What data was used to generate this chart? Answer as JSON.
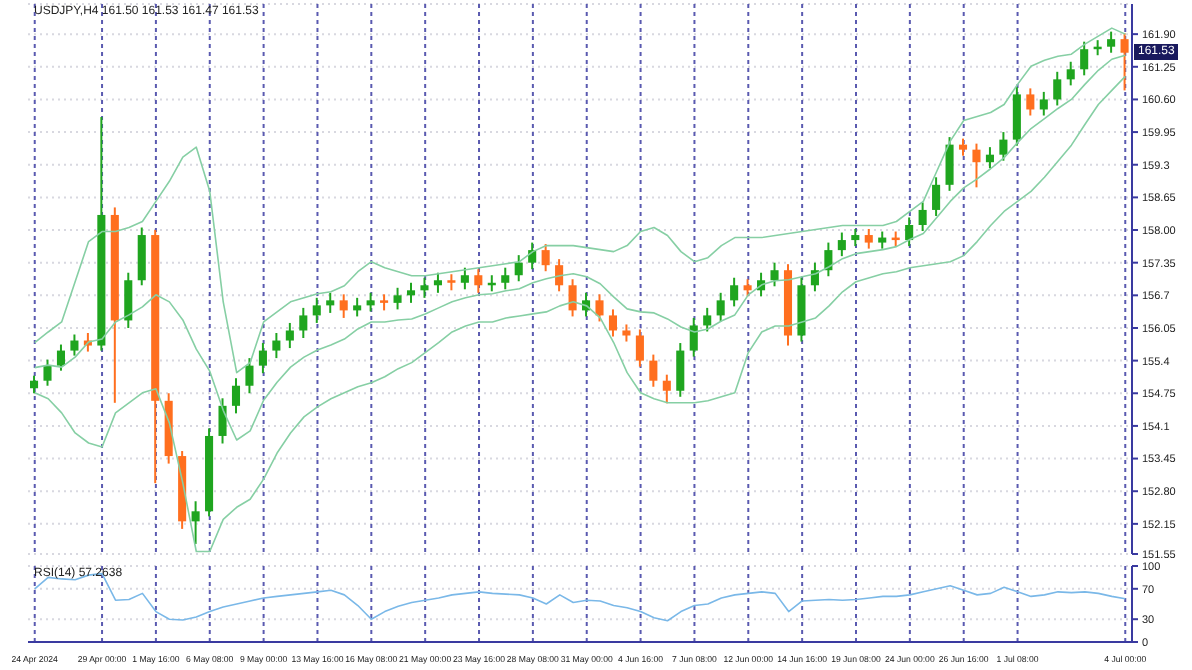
{
  "chart_data": [
    {
      "type": "candlestick",
      "title": "USDJPY,H4 161.50 161.53 161.47 161.53",
      "categories": [
        null,
        null,
        null,
        null,
        null,
        null,
        null,
        null,
        null,
        null,
        null,
        null,
        null,
        null,
        null,
        null,
        null,
        null,
        null,
        null,
        null,
        null,
        null,
        null,
        null,
        null,
        null,
        null,
        null,
        null,
        null,
        null,
        null,
        null,
        null,
        null,
        null,
        null,
        null,
        null,
        null,
        null,
        null,
        null,
        null,
        null,
        null,
        null,
        null,
        null,
        null,
        null,
        null,
        null,
        null,
        null,
        null,
        null,
        null,
        null,
        null,
        null,
        null,
        null,
        null,
        null,
        null,
        null,
        null,
        null,
        null,
        null,
        null,
        null,
        null,
        null,
        null,
        null,
        null,
        null,
        null,
        null
      ],
      "ohlc": [
        [
          154.85,
          155.1,
          154.75,
          155.0
        ],
        [
          155.0,
          155.42,
          154.9,
          155.3
        ],
        [
          155.3,
          155.72,
          155.2,
          155.6
        ],
        [
          155.6,
          155.92,
          155.5,
          155.8
        ],
        [
          155.8,
          155.95,
          155.58,
          155.7
        ],
        [
          155.7,
          160.25,
          155.6,
          158.3
        ],
        [
          158.3,
          158.45,
          154.56,
          156.2
        ],
        [
          156.2,
          157.15,
          156.05,
          157.0
        ],
        [
          157.0,
          158.05,
          156.9,
          157.9
        ],
        [
          157.9,
          158.0,
          152.96,
          154.6
        ],
        [
          154.6,
          154.75,
          153.35,
          153.5
        ],
        [
          153.5,
          153.6,
          152.05,
          152.2
        ],
        [
          152.2,
          152.6,
          151.75,
          152.4
        ],
        [
          152.4,
          154.05,
          152.3,
          153.9
        ],
        [
          153.9,
          154.65,
          153.75,
          154.5
        ],
        [
          154.5,
          155.05,
          154.35,
          154.9
        ],
        [
          154.9,
          155.45,
          154.75,
          155.3
        ],
        [
          155.3,
          155.75,
          155.15,
          155.6
        ],
        [
          155.6,
          155.95,
          155.45,
          155.8
        ],
        [
          155.8,
          156.15,
          155.65,
          156.0
        ],
        [
          156.0,
          156.45,
          155.85,
          156.3
        ],
        [
          156.3,
          156.65,
          156.15,
          156.5
        ],
        [
          156.5,
          156.75,
          156.35,
          156.6
        ],
        [
          156.6,
          156.72,
          156.25,
          156.4
        ],
        [
          156.4,
          156.65,
          156.28,
          156.5
        ],
        [
          156.5,
          156.75,
          156.38,
          156.6
        ],
        [
          156.6,
          156.72,
          156.4,
          156.55
        ],
        [
          156.55,
          156.85,
          156.42,
          156.7
        ],
        [
          156.7,
          156.95,
          156.55,
          156.8
        ],
        [
          156.8,
          157.05,
          156.65,
          156.9
        ],
        [
          156.9,
          157.15,
          156.75,
          157.0
        ],
        [
          157.0,
          157.12,
          156.8,
          156.95
        ],
        [
          156.95,
          157.25,
          156.82,
          157.1
        ],
        [
          157.1,
          157.22,
          156.75,
          156.9
        ],
        [
          156.9,
          157.1,
          156.78,
          156.95
        ],
        [
          156.95,
          157.25,
          156.82,
          157.1
        ],
        [
          157.1,
          157.5,
          156.98,
          157.35
        ],
        [
          157.35,
          157.75,
          157.22,
          157.6
        ],
        [
          157.6,
          157.72,
          157.18,
          157.3
        ],
        [
          157.3,
          157.42,
          156.78,
          156.9
        ],
        [
          156.9,
          157.02,
          156.28,
          156.4
        ],
        [
          156.4,
          156.75,
          156.28,
          156.6
        ],
        [
          156.6,
          156.72,
          156.18,
          156.3
        ],
        [
          156.3,
          156.42,
          155.88,
          156.0
        ],
        [
          156.0,
          156.12,
          155.78,
          155.9
        ],
        [
          155.9,
          156.02,
          155.28,
          155.4
        ],
        [
          155.4,
          155.52,
          154.88,
          155.0
        ],
        [
          155.0,
          155.12,
          154.55,
          154.8
        ],
        [
          154.8,
          155.75,
          154.68,
          155.6
        ],
        [
          155.6,
          156.25,
          155.48,
          156.1
        ],
        [
          156.1,
          156.45,
          155.98,
          156.3
        ],
        [
          156.3,
          156.75,
          156.18,
          156.6
        ],
        [
          156.6,
          157.05,
          156.48,
          156.9
        ],
        [
          156.9,
          157.02,
          156.68,
          156.8
        ],
        [
          156.8,
          157.15,
          156.68,
          157.0
        ],
        [
          157.0,
          157.35,
          156.88,
          157.2
        ],
        [
          157.2,
          157.32,
          155.7,
          155.9
        ],
        [
          155.9,
          157.05,
          155.78,
          156.9
        ],
        [
          156.9,
          157.35,
          156.78,
          157.2
        ],
        [
          157.2,
          157.75,
          157.08,
          157.6
        ],
        [
          157.6,
          157.95,
          157.48,
          157.8
        ],
        [
          157.8,
          158.02,
          157.68,
          157.9
        ],
        [
          157.9,
          158.02,
          157.63,
          157.75
        ],
        [
          157.75,
          157.97,
          157.63,
          157.85
        ],
        [
          157.85,
          157.97,
          157.68,
          157.8
        ],
        [
          157.8,
          158.25,
          157.68,
          158.1
        ],
        [
          158.1,
          158.55,
          157.98,
          158.4
        ],
        [
          158.4,
          159.05,
          158.28,
          158.9
        ],
        [
          158.9,
          159.85,
          158.78,
          159.7
        ],
        [
          159.7,
          159.82,
          159.48,
          159.6
        ],
        [
          159.6,
          159.72,
          158.85,
          159.35
        ],
        [
          159.35,
          159.65,
          159.23,
          159.5
        ],
        [
          159.5,
          159.95,
          159.38,
          159.8
        ],
        [
          159.8,
          160.85,
          159.68,
          160.7
        ],
        [
          160.7,
          160.82,
          160.28,
          160.4
        ],
        [
          160.4,
          160.75,
          160.28,
          160.6
        ],
        [
          160.6,
          161.15,
          160.48,
          161.0
        ],
        [
          161.0,
          161.35,
          160.88,
          161.2
        ],
        [
          161.2,
          161.75,
          161.08,
          161.6
        ],
        [
          161.6,
          161.78,
          161.48,
          161.65
        ],
        [
          161.65,
          161.95,
          161.53,
          161.8
        ],
        [
          161.8,
          161.92,
          160.78,
          161.53
        ]
      ],
      "colors": [
        "#1fa51f",
        "#1fa51f",
        "#1fa51f",
        "#1fa51f",
        "#ff6f1f",
        "#1fa51f",
        "#ff6f1f",
        "#1fa51f",
        "#1fa51f",
        "#ff6f1f",
        "#ff6f1f",
        "#ff6f1f",
        "#1fa51f",
        "#1fa51f",
        "#1fa51f",
        "#1fa51f",
        "#1fa51f",
        "#1fa51f",
        "#1fa51f",
        "#1fa51f",
        "#1fa51f",
        "#1fa51f",
        "#1fa51f",
        "#ff6f1f",
        "#1fa51f",
        "#1fa51f",
        "#ff6f1f",
        "#1fa51f",
        "#1fa51f",
        "#1fa51f",
        "#1fa51f",
        "#ff6f1f",
        "#1fa51f",
        "#ff6f1f",
        "#1fa51f",
        "#1fa51f",
        "#1fa51f",
        "#1fa51f",
        "#ff6f1f",
        "#ff6f1f",
        "#ff6f1f",
        "#1fa51f",
        "#ff6f1f",
        "#ff6f1f",
        "#ff6f1f",
        "#ff6f1f",
        "#ff6f1f",
        "#ff6f1f",
        "#1fa51f",
        "#1fa51f",
        "#1fa51f",
        "#1fa51f",
        "#1fa51f",
        "#ff6f1f",
        "#1fa51f",
        "#1fa51f",
        "#ff6f1f",
        "#1fa51f",
        "#1fa51f",
        "#1fa51f",
        "#1fa51f",
        "#1fa51f",
        "#ff6f1f",
        "#1fa51f",
        "#ff6f1f",
        "#1fa51f",
        "#1fa51f",
        "#1fa51f",
        "#1fa51f",
        "#ff6f1f",
        "#ff6f1f",
        "#1fa51f",
        "#1fa51f",
        "#1fa51f",
        "#ff6f1f",
        "#1fa51f",
        "#1fa51f",
        "#1fa51f",
        "#1fa51f",
        "#1fa51f",
        "#1fa51f",
        "#ff6f1f"
      ],
      "series": [
        {
          "type": "line",
          "color": "#86cfa4",
          "values": [
            155.76,
            155.97,
            156.17,
            156.97,
            157.77,
            157.97,
            157.97,
            158.05,
            158.17,
            158.57,
            158.97,
            159.45,
            159.65,
            158.77,
            156.57,
            155.16,
            155.36,
            156.17,
            156.37,
            156.57,
            156.65,
            156.73,
            156.77,
            156.89,
            157.17,
            157.37,
            157.25,
            157.17,
            157.09,
            157.09,
            157.13,
            157.17,
            157.21,
            157.25,
            157.29,
            157.33,
            157.37,
            157.57,
            157.69,
            157.69,
            157.69,
            157.65,
            157.61,
            157.57,
            157.69,
            157.97,
            158.05,
            157.89,
            157.57,
            157.37,
            157.45,
            157.69,
            157.85,
            157.85,
            157.85,
            157.89,
            157.93,
            157.97,
            158.01,
            158.05,
            158.09,
            158.09,
            158.09,
            158.09,
            158.17,
            158.37,
            158.57,
            159.17,
            159.77,
            160.18,
            160.26,
            160.34,
            160.5,
            160.9,
            161.26,
            161.38,
            161.46,
            161.5,
            161.7,
            161.86,
            162.02,
            161.9
          ]
        },
        {
          "type": "line",
          "color": "#86cfa4",
          "values": [
            155.26,
            155.31,
            155.27,
            155.47,
            155.77,
            155.83,
            156.17,
            156.31,
            156.47,
            156.71,
            156.57,
            156.21,
            155.63,
            155.19,
            154.41,
            153.82,
            154.0,
            154.61,
            154.97,
            155.27,
            155.47,
            155.61,
            155.71,
            155.83,
            156.03,
            156.17,
            156.17,
            156.21,
            156.23,
            156.33,
            156.45,
            156.57,
            156.65,
            156.71,
            156.73,
            156.79,
            156.83,
            156.95,
            157.03,
            157.09,
            157.13,
            157.07,
            156.93,
            156.67,
            156.43,
            156.37,
            156.35,
            156.23,
            156.07,
            155.97,
            156.03,
            156.19,
            156.31,
            156.71,
            156.91,
            156.99,
            157.01,
            157.07,
            157.13,
            157.27,
            157.43,
            157.53,
            157.57,
            157.61,
            157.67,
            157.81,
            157.93,
            158.25,
            158.57,
            158.84,
            159.02,
            159.22,
            159.44,
            159.74,
            160.02,
            160.22,
            160.42,
            160.6,
            160.9,
            161.18,
            161.4,
            161.48
          ]
        },
        {
          "type": "line",
          "color": "#86cfa4",
          "values": [
            154.76,
            154.64,
            154.36,
            153.96,
            153.76,
            153.68,
            154.36,
            154.56,
            154.76,
            154.84,
            154.16,
            152.96,
            151.6,
            151.6,
            152.24,
            152.48,
            152.64,
            153.04,
            153.56,
            153.96,
            154.28,
            154.48,
            154.64,
            154.76,
            154.88,
            154.96,
            155.08,
            155.24,
            155.36,
            155.56,
            155.76,
            155.97,
            156.09,
            156.17,
            156.17,
            156.25,
            156.29,
            156.33,
            156.37,
            156.49,
            156.57,
            156.49,
            156.25,
            155.76,
            155.16,
            154.76,
            154.64,
            154.56,
            154.56,
            154.56,
            154.6,
            154.68,
            154.76,
            155.56,
            155.97,
            156.09,
            156.09,
            156.17,
            156.25,
            156.49,
            156.77,
            156.97,
            157.05,
            157.13,
            157.17,
            157.25,
            157.29,
            157.33,
            157.37,
            157.49,
            157.77,
            158.09,
            158.37,
            158.57,
            158.77,
            159.05,
            159.37,
            159.69,
            160.1,
            160.5,
            160.78,
            161.06
          ]
        }
      ],
      "ylim": [
        151.55,
        162.5
      ],
      "yticks": [
        151.55,
        152.15,
        {
          "value": 152.8,
          "label": "152.80"
        },
        153.45,
        154.1,
        154.75,
        155.4,
        156.05,
        156.7,
        157.35,
        {
          "value": 158,
          "label": "158.00"
        },
        158.65,
        159.3,
        159.95,
        {
          "value": 160.6,
          "label": "160.60"
        },
        161.25,
        {
          "value": 161.9,
          "label": "161.90"
        }
      ],
      "grid": true,
      "tick_labels": "y",
      "annotations": [
        {
          "text": "161.53",
          "y": 161.53
        }
      ]
    },
    {
      "type": "line",
      "title": "RSI(14) 57.2638",
      "categories": [
        "24 Apr 2024",
        null,
        null,
        null,
        null,
        "29 Apr 00:00",
        null,
        null,
        null,
        "1 May 16:00",
        null,
        null,
        null,
        "6 May 08:00",
        null,
        null,
        null,
        "9 May 00:00",
        null,
        null,
        null,
        "13 May 16:00",
        null,
        null,
        null,
        "16 May 08:00",
        null,
        null,
        null,
        "21 May 00:00",
        null,
        null,
        null,
        "23 May 16:00",
        null,
        null,
        null,
        "28 May 08:00",
        null,
        null,
        null,
        "31 May 00:00",
        null,
        null,
        null,
        "4 Jun 16:00",
        null,
        null,
        null,
        "7 Jun 08:00",
        null,
        null,
        null,
        "12 Jun 00:00",
        null,
        null,
        null,
        "14 Jun 16:00",
        null,
        null,
        null,
        "19 Jun 08:00",
        null,
        null,
        null,
        "24 Jun 00:00",
        null,
        null,
        null,
        "26 Jun 16:00",
        null,
        null,
        null,
        "1 Jul 08:00",
        null,
        null,
        null,
        null,
        null,
        null,
        null,
        "4 Jul 00:00"
      ],
      "series": [
        {
          "color": "#7ab8e8",
          "values": [
            70,
            85,
            83,
            82,
            88,
            90,
            55,
            56,
            64,
            40,
            30,
            29,
            33,
            40,
            46,
            50,
            54,
            58,
            60,
            62,
            64,
            66,
            68,
            62,
            48,
            30,
            40,
            47,
            52,
            55,
            58,
            62,
            64,
            66,
            64,
            63,
            62,
            58,
            50,
            62,
            52,
            55,
            54,
            48,
            45,
            40,
            32,
            28,
            40,
            48,
            50,
            58,
            62,
            64,
            66,
            64,
            40,
            54,
            55,
            56,
            55,
            56,
            58,
            60,
            60,
            62,
            66,
            70,
            74,
            68,
            62,
            64,
            72,
            66,
            60,
            62,
            66,
            65,
            66,
            64,
            60,
            57
          ]
        }
      ],
      "ylim": [
        0,
        100
      ],
      "yticks": [
        0,
        30,
        70,
        100
      ],
      "grid": true
    }
  ]
}
